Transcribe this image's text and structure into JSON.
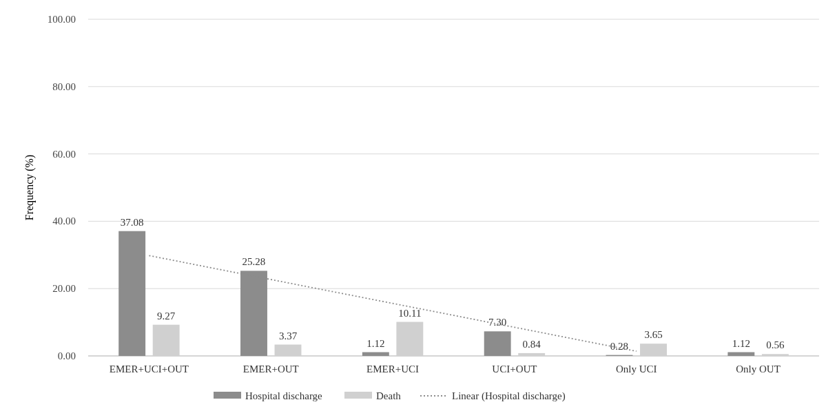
{
  "chart_data": {
    "type": "bar",
    "ylabel": "Frequency (%)",
    "categories": [
      "EMER+UCI+OUT",
      "EMER+OUT",
      "EMER+UCI",
      "UCI+OUT",
      "Only UCI",
      "Only OUT"
    ],
    "series": [
      {
        "name": "Hospital discharge",
        "color": "#8c8c8c",
        "values": [
          37.08,
          25.28,
          1.12,
          7.3,
          0.28,
          1.12
        ],
        "value_labels": [
          "37.08",
          "25.28",
          "1.12",
          "7.30",
          "0.28",
          "1.12"
        ]
      },
      {
        "name": "Death",
        "color": "#d0d0d0",
        "values": [
          9.27,
          3.37,
          10.11,
          0.84,
          3.65,
          0.56
        ],
        "value_labels": [
          "9.27",
          "3.37",
          "10.11",
          "0.84",
          "3.65",
          "0.56"
        ]
      },
      {
        "name": "Linear (Hospital discharge)",
        "type": "line",
        "color": "#8c8c8c",
        "line_style": "dotted",
        "values": [
          29.8,
          22.7,
          15.6,
          8.5,
          1.4,
          null
        ]
      }
    ],
    "ylim": [
      0,
      100
    ],
    "yticks": [
      {
        "value": 0,
        "label": "0.00"
      },
      {
        "value": 20,
        "label": "20.00"
      },
      {
        "value": 40,
        "label": "40.00"
      },
      {
        "value": 60,
        "label": "60.00"
      },
      {
        "value": 80,
        "label": "80.00"
      },
      {
        "value": 100,
        "label": "100.00"
      }
    ],
    "grid": "y",
    "legend": "bottom"
  }
}
